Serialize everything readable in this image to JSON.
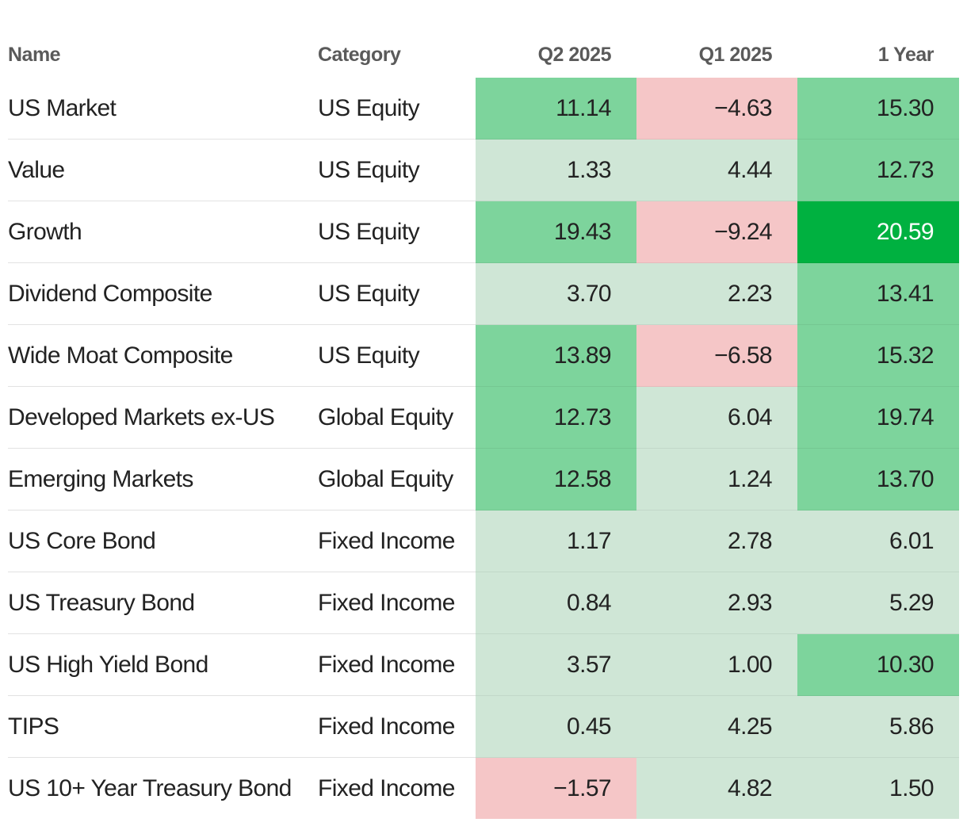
{
  "chart_data": {
    "type": "table",
    "columns": [
      "Name",
      "Category",
      "Q2 2025",
      "Q1 2025",
      "1 Year"
    ],
    "rows": [
      {
        "name": "US Market",
        "category": "US Equity",
        "values": [
          "11.14",
          "−4.63",
          "15.30"
        ]
      },
      {
        "name": "Value",
        "category": "US Equity",
        "values": [
          "1.33",
          "4.44",
          "12.73"
        ]
      },
      {
        "name": "Growth",
        "category": "US Equity",
        "values": [
          "19.43",
          "−9.24",
          "20.59"
        ]
      },
      {
        "name": "Dividend Composite",
        "category": "US Equity",
        "values": [
          "3.70",
          "2.23",
          "13.41"
        ]
      },
      {
        "name": "Wide Moat Composite",
        "category": "US Equity",
        "values": [
          "13.89",
          "−6.58",
          "15.32"
        ]
      },
      {
        "name": "Developed Markets ex-US",
        "category": "Global Equity",
        "values": [
          "12.73",
          "6.04",
          "19.74"
        ]
      },
      {
        "name": "Emerging Markets",
        "category": "Global Equity",
        "values": [
          "12.58",
          "1.24",
          "13.70"
        ]
      },
      {
        "name": "US Core Bond",
        "category": "Fixed Income",
        "values": [
          "1.17",
          "2.78",
          "6.01"
        ]
      },
      {
        "name": "US Treasury Bond",
        "category": "Fixed Income",
        "values": [
          "0.84",
          "2.93",
          "5.29"
        ]
      },
      {
        "name": "US High Yield Bond",
        "category": "Fixed Income",
        "values": [
          "3.57",
          "1.00",
          "10.30"
        ]
      },
      {
        "name": "TIPS",
        "category": "Fixed Income",
        "values": [
          "0.45",
          "4.25",
          "5.86"
        ]
      },
      {
        "name": "US 10+ Year Treasury Bond",
        "category": "Fixed Income",
        "values": [
          "−1.57",
          "4.82",
          "1.50"
        ]
      }
    ],
    "color_scale": {
      "negative": "#f5c6c7",
      "low_positive": "#cfe6d6",
      "mid_positive": "#7dd49c",
      "high_positive": "#00b140",
      "low_threshold": 10,
      "high_threshold": 20
    },
    "text_colors": {
      "default": "#222222",
      "on_high": "#ffffff"
    }
  }
}
